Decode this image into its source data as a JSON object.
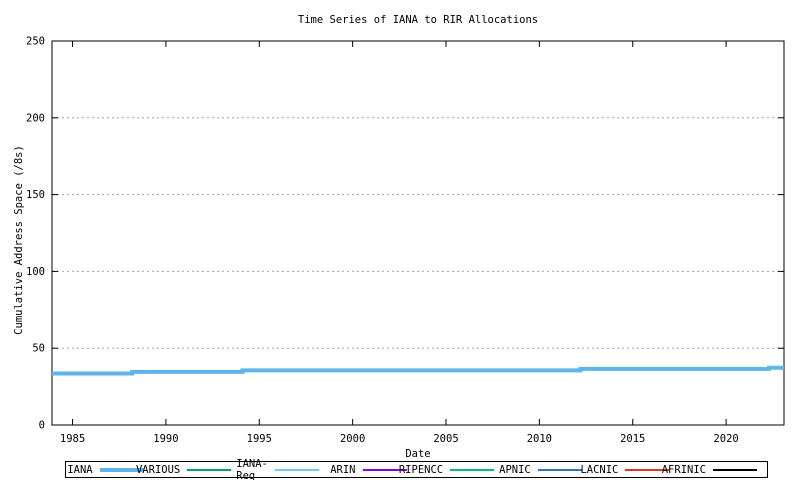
{
  "chart_data": {
    "type": "line",
    "title": "Time Series of IANA to RIR Allocations",
    "xlabel": "Date",
    "ylabel": "Cumulative Address Space (/8s)",
    "xlim": [
      1983.9,
      2023.1
    ],
    "ylim": [
      0,
      250
    ],
    "x_ticks": [
      1985,
      1990,
      1995,
      2000,
      2005,
      2010,
      2015,
      2020
    ],
    "y_ticks": [
      0,
      50,
      100,
      150,
      200,
      250
    ],
    "grid": "horizontal-dashed",
    "grid_color": "#a6a6a6",
    "axis_color": "#000000",
    "legend_position": "bottom-outside",
    "series": [
      {
        "name": "IANA",
        "color": "#5eb6e6",
        "line_width": 4,
        "points": [
          [
            1983.9,
            33.5
          ],
          [
            1988.2,
            33.5
          ],
          [
            1988.2,
            34.6
          ],
          [
            1994.1,
            34.6
          ],
          [
            1994.1,
            35.6
          ],
          [
            2012.2,
            35.6
          ],
          [
            2012.2,
            36.5
          ],
          [
            2022.3,
            36.5
          ],
          [
            2022.3,
            37.3
          ],
          [
            2023.1,
            37.3
          ]
        ]
      },
      {
        "name": "VARIOUS",
        "color": "#009e73",
        "line_width": 2,
        "points": []
      },
      {
        "name": "IANA-Reg",
        "color": "#74c8ec",
        "line_width": 2,
        "points": []
      },
      {
        "name": "ARIN",
        "color": "#9400d3",
        "line_width": 2,
        "points": []
      },
      {
        "name": "RIPENCC",
        "color": "#00b890",
        "line_width": 2,
        "points": []
      },
      {
        "name": "APNIC",
        "color": "#2878c8",
        "line_width": 2,
        "points": []
      },
      {
        "name": "LACNIC",
        "color": "#e63226",
        "line_width": 2,
        "points": []
      },
      {
        "name": "AFRINIC",
        "color": "#000000",
        "line_width": 2,
        "points": []
      }
    ]
  }
}
